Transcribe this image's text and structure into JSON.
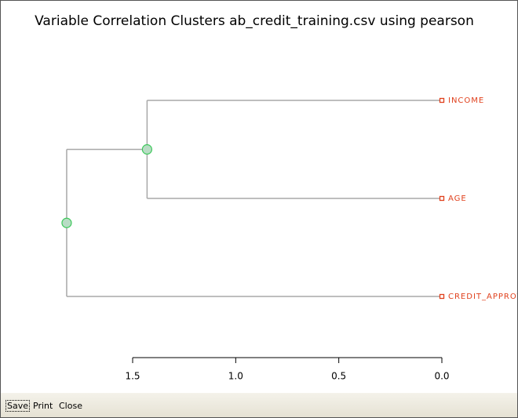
{
  "chart_data": {
    "type": "dendrogram",
    "title": "Variable Correlation Clusters ab_credit_training.csv using pearson",
    "leaves": [
      "INCOME",
      "AGE",
      "CREDIT_APPROV"
    ],
    "merges": [
      {
        "height": 1.43
      },
      {
        "height": 1.82
      }
    ],
    "xlim": [
      1.5,
      0
    ],
    "xticks": [
      {
        "value": 1.5,
        "label": "1.5"
      },
      {
        "value": 1,
        "label": "1.0"
      },
      {
        "value": 0.5,
        "label": "0.5"
      },
      {
        "value": 0,
        "label": "0.0"
      }
    ],
    "line_color": "#a8a8a8",
    "leaf_color": "#e0401c",
    "node_color": "#3cc85a"
  },
  "buttons": [
    "Save",
    "Print",
    "Close"
  ]
}
